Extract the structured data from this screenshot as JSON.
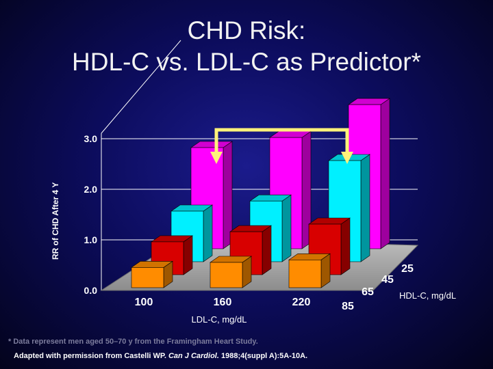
{
  "title": {
    "line1": "CHD Risk:",
    "line2": "HDL-C vs. LDL-C as Predictor*"
  },
  "footnote": "* Data represent men aged 50–70 y from the Framingham Heart Study.",
  "source": {
    "prefix": "Adapted with permission from Castelli WP. ",
    "journal": "Can J Cardiol.",
    "suffix": " 1988;4(suppl A):5A-10A."
  },
  "chart_data": {
    "type": "bar",
    "subtype": "3d-grouped",
    "title": "CHD Risk: HDL-C vs. LDL-C as Predictor*",
    "xlabel": "LDL-C, mg/dL",
    "zlabel": "HDL-C, mg/dL",
    "ylabel": "RR of CHD After 4 Y",
    "ylim": [
      0,
      3.0
    ],
    "yticks": [
      "0.0",
      "1.0",
      "2.0",
      "3.0"
    ],
    "categories": [
      "100",
      "160",
      "220"
    ],
    "series": [
      {
        "name": "85",
        "color": "#ff8c00",
        "values": [
          0.4,
          0.5,
          0.55
        ]
      },
      {
        "name": "65",
        "color": "#d80000",
        "values": [
          0.65,
          0.85,
          1.0
        ]
      },
      {
        "name": "45",
        "color": "#00f0ff",
        "values": [
          1.0,
          1.2,
          2.0
        ]
      },
      {
        "name": "25",
        "color": "#ff00ff",
        "values": [
          2.0,
          2.2,
          2.85
        ]
      }
    ],
    "annotation": "arrow comparing HDL-C 25 / LDL-C 100 bar with HDL-C 45 / LDL-C 220 bar"
  }
}
